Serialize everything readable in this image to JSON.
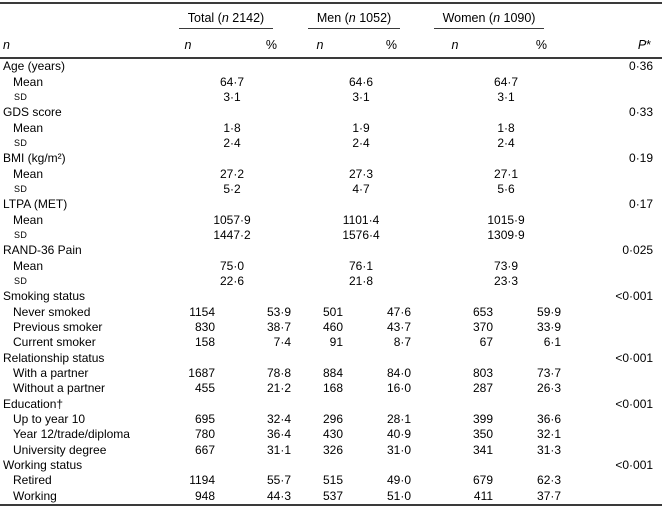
{
  "table": {
    "header": {
      "row_label": "n",
      "groups": [
        {
          "pre": "Total (",
          "n": "n",
          "post": " 2142)"
        },
        {
          "pre": "Men (",
          "n": "n",
          "post": " 1052)"
        },
        {
          "pre": "Women (",
          "n": "n",
          "post": " 1090)"
        }
      ],
      "sub_n": "n",
      "sub_pct": "%",
      "p_italic": "P",
      "p_star": "*"
    },
    "rows": [
      {
        "type": "section",
        "label": "Age (years)",
        "p": "0·36"
      },
      {
        "type": "stat",
        "label": "Mean",
        "sc": false,
        "values": [
          "64·7",
          "64·6",
          "64·7"
        ]
      },
      {
        "type": "stat",
        "label": "SD",
        "sc": true,
        "values": [
          "3·1",
          "3·1",
          "3·1"
        ]
      },
      {
        "type": "section",
        "label": "GDS score",
        "p": "0·33"
      },
      {
        "type": "stat",
        "label": "Mean",
        "sc": false,
        "values": [
          "1·8",
          "1·9",
          "1·8"
        ]
      },
      {
        "type": "stat",
        "label": "SD",
        "sc": true,
        "values": [
          "2·4",
          "2·4",
          "2·4"
        ]
      },
      {
        "type": "section",
        "label": "BMI (kg/m²)",
        "p": "0·19"
      },
      {
        "type": "stat",
        "label": "Mean",
        "sc": false,
        "values": [
          "27·2",
          "27·3",
          "27·1"
        ]
      },
      {
        "type": "stat",
        "label": "SD",
        "sc": true,
        "values": [
          "5·2",
          "4·7",
          "5·6"
        ]
      },
      {
        "type": "section",
        "label": "LTPA (MET)",
        "p": "0·17"
      },
      {
        "type": "stat",
        "label": "Mean",
        "sc": false,
        "values": [
          "1057·9",
          "1101·4",
          "1015·9"
        ]
      },
      {
        "type": "stat",
        "label": "SD",
        "sc": true,
        "values": [
          "1447·2",
          "1576·4",
          "1309·9"
        ]
      },
      {
        "type": "section",
        "label": "RAND-36 Pain",
        "p": "0·025"
      },
      {
        "type": "stat",
        "label": "Mean",
        "sc": false,
        "values": [
          "75·0",
          "76·1",
          "73·9"
        ]
      },
      {
        "type": "stat",
        "label": "SD",
        "sc": true,
        "values": [
          "22·6",
          "21·8",
          "23·3"
        ]
      },
      {
        "type": "section",
        "label": "Smoking status",
        "p": "<0·001"
      },
      {
        "type": "cat",
        "label": "Never smoked",
        "values": [
          "1154",
          "53·9",
          "501",
          "47·6",
          "653",
          "59·9"
        ]
      },
      {
        "type": "cat",
        "label": "Previous smoker",
        "values": [
          "830",
          "38·7",
          "460",
          "43·7",
          "370",
          "33·9"
        ]
      },
      {
        "type": "cat",
        "label": "Current smoker",
        "values": [
          "158",
          "7·4",
          "91",
          "8·7",
          "67",
          "6·1"
        ]
      },
      {
        "type": "section",
        "label": "Relationship status",
        "p": "<0·001"
      },
      {
        "type": "cat",
        "label": "With a partner",
        "values": [
          "1687",
          "78·8",
          "884",
          "84·0",
          "803",
          "73·7"
        ]
      },
      {
        "type": "cat",
        "label": "Without a partner",
        "values": [
          "455",
          "21·2",
          "168",
          "16·0",
          "287",
          "26·3"
        ]
      },
      {
        "type": "section",
        "label": "Education†",
        "p": "<0·001"
      },
      {
        "type": "cat",
        "label": "Up to year 10",
        "values": [
          "695",
          "32·4",
          "296",
          "28·1",
          "399",
          "36·6"
        ]
      },
      {
        "type": "cat",
        "label": "Year 12/trade/diploma",
        "values": [
          "780",
          "36·4",
          "430",
          "40·9",
          "350",
          "32·1"
        ]
      },
      {
        "type": "cat",
        "label": "University degree",
        "values": [
          "667",
          "31·1",
          "326",
          "31·0",
          "341",
          "31·3"
        ]
      },
      {
        "type": "section",
        "label": "Working status",
        "p": "<0·001"
      },
      {
        "type": "cat",
        "label": "Retired",
        "values": [
          "1194",
          "55·7",
          "515",
          "49·0",
          "679",
          "62·3"
        ]
      },
      {
        "type": "cat",
        "label": "Working",
        "values": [
          "948",
          "44·3",
          "537",
          "51·0",
          "411",
          "37·7"
        ]
      }
    ]
  }
}
